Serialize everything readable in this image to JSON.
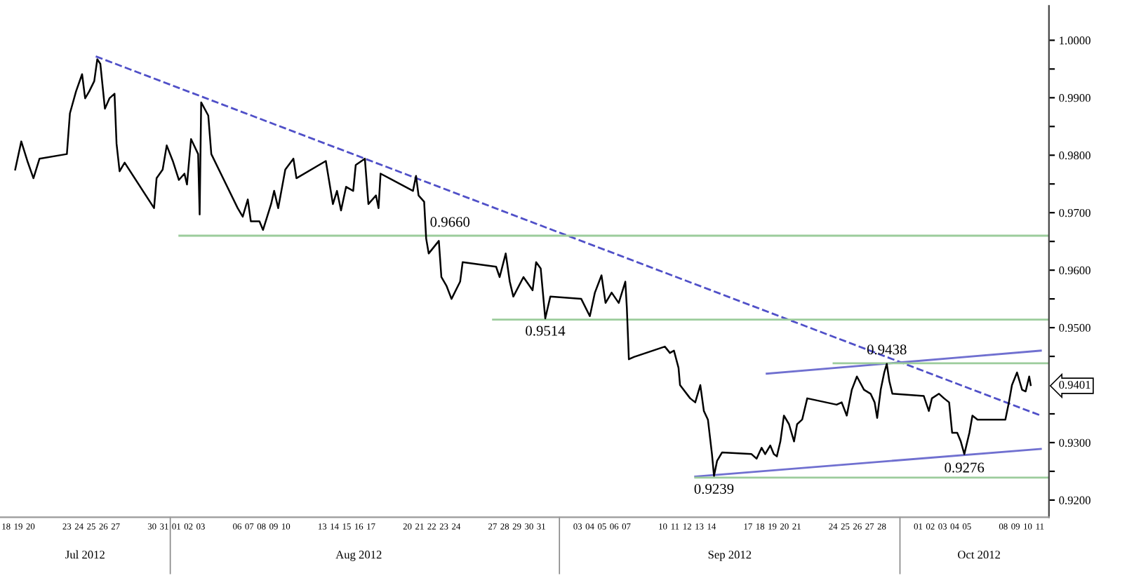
{
  "chart_data": {
    "type": "line",
    "xlim": [
      "2012-07-17T12:00",
      "2012-10-11T18:00"
    ],
    "ylim": [
      0.917,
      1.006
    ],
    "yticks": [
      {
        "value": 1.0,
        "label": "1.0000"
      },
      {
        "value": 0.995,
        "label": null
      },
      {
        "value": 0.99,
        "label": "0.9900"
      },
      {
        "value": 0.985,
        "label": null
      },
      {
        "value": 0.98,
        "label": "0.9800"
      },
      {
        "value": 0.975,
        "label": null
      },
      {
        "value": 0.97,
        "label": "0.9700"
      },
      {
        "value": 0.965,
        "label": null
      },
      {
        "value": 0.96,
        "label": "0.9600"
      },
      {
        "value": 0.955,
        "label": null
      },
      {
        "value": 0.95,
        "label": "0.9500"
      },
      {
        "value": 0.945,
        "label": null
      },
      {
        "value": 0.9401,
        "label": "0.9401"
      },
      {
        "value": 0.935,
        "label": null
      },
      {
        "value": 0.93,
        "label": "0.9300"
      },
      {
        "value": 0.925,
        "label": null
      },
      {
        "value": 0.92,
        "label": "0.9200"
      }
    ],
    "xticks": [
      {
        "value": "2012-07-18",
        "label": "18"
      },
      {
        "value": "2012-07-19",
        "label": "19"
      },
      {
        "value": "2012-07-20",
        "label": "20"
      },
      {
        "value": "2012-07-23",
        "label": "23"
      },
      {
        "value": "2012-07-24",
        "label": "24"
      },
      {
        "value": "2012-07-25",
        "label": "25"
      },
      {
        "value": "2012-07-26",
        "label": "26"
      },
      {
        "value": "2012-07-27",
        "label": "27"
      },
      {
        "value": "2012-07-30",
        "label": "30"
      },
      {
        "value": "2012-07-31",
        "label": "31"
      },
      {
        "value": "2012-08-01",
        "label": "01"
      },
      {
        "value": "2012-08-02",
        "label": "02"
      },
      {
        "value": "2012-08-03",
        "label": "03"
      },
      {
        "value": "2012-08-06",
        "label": "06"
      },
      {
        "value": "2012-08-07",
        "label": "07"
      },
      {
        "value": "2012-08-08",
        "label": "08"
      },
      {
        "value": "2012-08-09",
        "label": "09"
      },
      {
        "value": "2012-08-10",
        "label": "10"
      },
      {
        "value": "2012-08-13",
        "label": "13"
      },
      {
        "value": "2012-08-14",
        "label": "14"
      },
      {
        "value": "2012-08-15",
        "label": "15"
      },
      {
        "value": "2012-08-16",
        "label": "16"
      },
      {
        "value": "2012-08-17",
        "label": "17"
      },
      {
        "value": "2012-08-20",
        "label": "20"
      },
      {
        "value": "2012-08-21",
        "label": "21"
      },
      {
        "value": "2012-08-22",
        "label": "22"
      },
      {
        "value": "2012-08-23",
        "label": "23"
      },
      {
        "value": "2012-08-24",
        "label": "24"
      },
      {
        "value": "2012-08-27",
        "label": "27"
      },
      {
        "value": "2012-08-28",
        "label": "28"
      },
      {
        "value": "2012-08-29",
        "label": "29"
      },
      {
        "value": "2012-08-30",
        "label": "30"
      },
      {
        "value": "2012-08-31",
        "label": "31"
      },
      {
        "value": "2012-09-03",
        "label": "03"
      },
      {
        "value": "2012-09-04",
        "label": "04"
      },
      {
        "value": "2012-09-05",
        "label": "05"
      },
      {
        "value": "2012-09-06",
        "label": "06"
      },
      {
        "value": "2012-09-07",
        "label": "07"
      },
      {
        "value": "2012-09-10",
        "label": "10"
      },
      {
        "value": "2012-09-11",
        "label": "11"
      },
      {
        "value": "2012-09-12",
        "label": "12"
      },
      {
        "value": "2012-09-13",
        "label": "13"
      },
      {
        "value": "2012-09-14",
        "label": "14"
      },
      {
        "value": "2012-09-17",
        "label": "17"
      },
      {
        "value": "2012-09-18",
        "label": "18"
      },
      {
        "value": "2012-09-19",
        "label": "19"
      },
      {
        "value": "2012-09-20",
        "label": "20"
      },
      {
        "value": "2012-09-21",
        "label": "21"
      },
      {
        "value": "2012-09-24",
        "label": "24"
      },
      {
        "value": "2012-09-25",
        "label": "25"
      },
      {
        "value": "2012-09-26",
        "label": "26"
      },
      {
        "value": "2012-09-27",
        "label": "27"
      },
      {
        "value": "2012-09-28",
        "label": "28"
      },
      {
        "value": "2012-10-01",
        "label": "01"
      },
      {
        "value": "2012-10-02",
        "label": "02"
      },
      {
        "value": "2012-10-03",
        "label": "03"
      },
      {
        "value": "2012-10-04",
        "label": "04"
      },
      {
        "value": "2012-10-05",
        "label": "05"
      },
      {
        "value": "2012-10-08",
        "label": "08"
      },
      {
        "value": "2012-10-09",
        "label": "09"
      },
      {
        "value": "2012-10-10",
        "label": "10"
      },
      {
        "value": "2012-10-11",
        "label": "11"
      }
    ],
    "grid": false,
    "marker": "none",
    "line_style": "solid",
    "series": [
      {
        "color": "#000000",
        "x": [
          "2012-07-18T18:00",
          "2012-07-19T06:00",
          "2012-07-19T18:00",
          "2012-07-20T06:00",
          "2012-07-20T18:00",
          "2012-07-23T00:00",
          "2012-07-23T06:00",
          "2012-07-23T18:00",
          "2012-07-24T06:00",
          "2012-07-24T12:00",
          "2012-07-24T20:00",
          "2012-07-25T06:00",
          "2012-07-25T12:00",
          "2012-07-25T18:00",
          "2012-07-26T03:00",
          "2012-07-26T12:00",
          "2012-07-26T22:00",
          "2012-07-27T02:00",
          "2012-07-27T08:00",
          "2012-07-27T18:00",
          "2012-07-30T04:00",
          "2012-07-30T09:00",
          "2012-07-30T21:00",
          "2012-07-31T05:00",
          "2012-07-31T17:00",
          "2012-08-01T05:00",
          "2012-08-01T16:00",
          "2012-08-01T21:00",
          "2012-08-02T05:00",
          "2012-08-02T19:00",
          "2012-08-02T22:00",
          "2012-08-03T01:00",
          "2012-08-03T15:00",
          "2012-08-03T21:00",
          "2012-08-06T01:00",
          "2012-08-06T11:00",
          "2012-08-06T21:00",
          "2012-08-07T03:00",
          "2012-08-07T20:00",
          "2012-08-08T03:00",
          "2012-08-08T19:00",
          "2012-08-09T01:00",
          "2012-08-09T09:00",
          "2012-08-09T23:00",
          "2012-08-10T15:00",
          "2012-08-10T21:00",
          "2012-08-13T07:00",
          "2012-08-13T21:00",
          "2012-08-14T05:00",
          "2012-08-14T13:00",
          "2012-08-14T23:00",
          "2012-08-15T13:00",
          "2012-08-15T18:00",
          "2012-08-16T12:00",
          "2012-08-16T19:00",
          "2012-08-17T10:00",
          "2012-08-17T15:00",
          "2012-08-17T19:00",
          "2012-08-20T11:00",
          "2012-08-20T17:00",
          "2012-08-20T22:00",
          "2012-08-21T09:00",
          "2012-08-21T13:00",
          "2012-08-21T18:00",
          "2012-08-22T14:00",
          "2012-08-22T19:00",
          "2012-08-23T05:00",
          "2012-08-23T15:00",
          "2012-08-24T08:00",
          "2012-08-24T13:00",
          "2012-08-27T07:00",
          "2012-08-27T14:00",
          "2012-08-28T02:00",
          "2012-08-28T10:00",
          "2012-08-28T17:00",
          "2012-08-29T13:00",
          "2012-08-30T07:00",
          "2012-08-30T14:00",
          "2012-08-30T23:00",
          "2012-08-31T08:00",
          "2012-08-31T18:00",
          "2012-09-03T07:00",
          "2012-09-04T00:00",
          "2012-09-04T10:00",
          "2012-09-04T23:00",
          "2012-09-05T07:00",
          "2012-09-05T19:00",
          "2012-09-06T09:00",
          "2012-09-06T22:00",
          "2012-09-07T01:00",
          "2012-09-07T05:00",
          "2012-09-07T15:00",
          "2012-09-10T04:00",
          "2012-09-10T14:00",
          "2012-09-10T22:00",
          "2012-09-11T07:00",
          "2012-09-11T10:00",
          "2012-09-12T06:00",
          "2012-09-12T16:00",
          "2012-09-13T02:00",
          "2012-09-13T09:00",
          "2012-09-13T17:00",
          "2012-09-14T01:00",
          "2012-09-14T05:00",
          "2012-09-14T11:00",
          "2012-09-14T21:00",
          "2012-09-17T07:00",
          "2012-09-17T17:00",
          "2012-09-18T03:00",
          "2012-09-18T10:00",
          "2012-09-18T20:00",
          "2012-09-19T03:00",
          "2012-09-19T09:00",
          "2012-09-19T16:00",
          "2012-09-19T23:00",
          "2012-09-20T09:00",
          "2012-09-20T19:00",
          "2012-09-21T01:00",
          "2012-09-21T11:00",
          "2012-09-21T21:00",
          "2012-09-24T07:00",
          "2012-09-24T17:00",
          "2012-09-25T03:00",
          "2012-09-25T13:00",
          "2012-09-25T23:00",
          "2012-09-26T13:00",
          "2012-09-27T02:00",
          "2012-09-27T10:00",
          "2012-09-27T15:00",
          "2012-09-27T22:00",
          "2012-09-28T05:00",
          "2012-09-28T10:00",
          "2012-09-28T15:00",
          "2012-09-28T21:00",
          "2012-10-01T11:00",
          "2012-10-01T21:00",
          "2012-10-02T03:00",
          "2012-10-02T17:00",
          "2012-10-03T03:00",
          "2012-10-03T13:00",
          "2012-10-03T19:00",
          "2012-10-04T05:00",
          "2012-10-04T12:00",
          "2012-10-04T19:00",
          "2012-10-05T05:00",
          "2012-10-05T11:00",
          "2012-10-05T21:00",
          "2012-10-08T04:00",
          "2012-10-08T11:00",
          "2012-10-08T17:00",
          "2012-10-09T03:00",
          "2012-10-09T13:00",
          "2012-10-09T20:00",
          "2012-10-10T03:00",
          "2012-10-10T06:00"
        ],
        "values": [
          0.9775,
          0.9824,
          0.979,
          0.976,
          0.9794,
          0.9802,
          0.9873,
          0.9911,
          0.9941,
          0.9899,
          0.9911,
          0.9929,
          0.9967,
          0.9959,
          0.9881,
          0.9899,
          0.9907,
          0.982,
          0.9772,
          0.9787,
          0.9708,
          0.976,
          0.9775,
          0.9817,
          0.979,
          0.9757,
          0.9768,
          0.9749,
          0.9828,
          0.9802,
          0.9697,
          0.9892,
          0.9869,
          0.9802,
          0.9708,
          0.9693,
          0.9723,
          0.9685,
          0.9685,
          0.967,
          0.9715,
          0.9738,
          0.9708,
          0.9775,
          0.9794,
          0.976,
          0.979,
          0.9715,
          0.9738,
          0.9704,
          0.9745,
          0.9738,
          0.9783,
          0.9794,
          0.9715,
          0.973,
          0.9708,
          0.9768,
          0.9738,
          0.9764,
          0.973,
          0.9719,
          0.9655,
          0.9629,
          0.9651,
          0.9588,
          0.9573,
          0.955,
          0.958,
          0.9614,
          0.9606,
          0.9588,
          0.9629,
          0.958,
          0.9554,
          0.9588,
          0.9565,
          0.9614,
          0.9603,
          0.9516,
          0.9554,
          0.955,
          0.952,
          0.9561,
          0.9591,
          0.9543,
          0.9561,
          0.9543,
          0.958,
          0.9535,
          0.9445,
          0.9449,
          0.9467,
          0.9456,
          0.946,
          0.943,
          0.94,
          0.9377,
          0.937,
          0.94,
          0.9355,
          0.934,
          0.928,
          0.9242,
          0.9268,
          0.9283,
          0.928,
          0.9272,
          0.9291,
          0.928,
          0.9295,
          0.928,
          0.9276,
          0.9302,
          0.9347,
          0.9332,
          0.9302,
          0.9332,
          0.934,
          0.9377,
          0.9366,
          0.937,
          0.9347,
          0.9392,
          0.9415,
          0.9392,
          0.9385,
          0.937,
          0.9343,
          0.9392,
          0.9422,
          0.9437,
          0.9407,
          0.9385,
          0.9381,
          0.9355,
          0.9377,
          0.9385,
          0.9377,
          0.937,
          0.9317,
          0.9317,
          0.9302,
          0.928,
          0.9317,
          0.9347,
          0.934,
          0.934,
          0.937,
          0.94,
          0.9422,
          0.9392,
          0.9389,
          0.9415,
          0.94
        ]
      },
      {
        "color": "#5050c8",
        "line_style": "dashed",
        "x": [
          "2012-07-25T09:00",
          "2012-10-11T02:00"
        ],
        "values": [
          0.9972,
          0.9347
        ]
      },
      {
        "color": "#7070d0",
        "x": [
          "2012-09-18T13:00",
          "2012-10-11T02:00"
        ],
        "values": [
          0.942,
          0.946
        ]
      },
      {
        "color": "#7070d0",
        "x": [
          "2012-09-12T16:00",
          "2012-10-11T02:00"
        ],
        "values": [
          0.9241,
          0.9289
        ]
      },
      {
        "color": "#9ccc9c",
        "x": [
          "2012-08-01T06:00",
          "2012-10-11T18:00"
        ],
        "values": [
          0.966,
          0.966
        ]
      },
      {
        "color": "#9ccc9c",
        "x": [
          "2012-08-27T01:00",
          "2012-10-11T18:00"
        ],
        "values": [
          0.9514,
          0.9514
        ]
      },
      {
        "color": "#9ccc9c",
        "x": [
          "2012-09-24T01:00",
          "2012-10-11T18:00"
        ],
        "values": [
          0.9438,
          0.9438
        ]
      },
      {
        "color": "#9ccc9c",
        "x": [
          "2012-09-12T16:00",
          "2012-10-11T18:00"
        ],
        "values": [
          0.9239,
          0.9239
        ]
      }
    ],
    "annotations": [
      {
        "text": "0.9660",
        "x": "2012-08-23T12:00",
        "y": 0.966
      },
      {
        "text": "0.9514",
        "x": "2012-08-31T08:00",
        "y": 0.9514
      },
      {
        "text": "0.9239",
        "x": "2012-09-14T05:00",
        "y": 0.9239
      },
      {
        "text": "0.9438",
        "x": "2012-09-28T10:00",
        "y": 0.9438
      },
      {
        "text": "0.9276",
        "x": "2012-10-04T19:00",
        "y": 0.9276
      },
      "Jul 2012",
      "Aug 2012",
      "Sep 2012",
      "Oct 2012"
    ]
  }
}
